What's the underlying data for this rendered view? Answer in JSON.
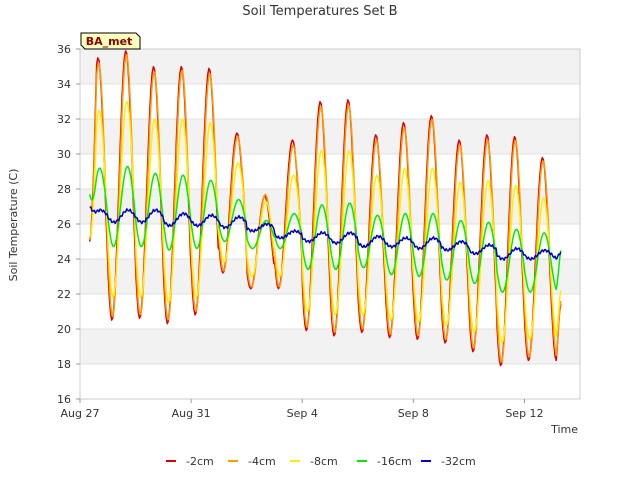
{
  "chart_data": {
    "type": "line",
    "title": "Soil Temperatures Set B",
    "xlabel": "Time",
    "ylabel": "Soil Temperature (C)",
    "badge": "BA_met",
    "x_start": "Aug 27",
    "x_end": "Sep 14",
    "xlim": [
      0,
      18
    ],
    "ylim": [
      16,
      36
    ],
    "x_ticks": [
      {
        "label": "Aug 27",
        "day": 0
      },
      {
        "label": "Aug 31",
        "day": 4
      },
      {
        "label": "Sep 4",
        "day": 8
      },
      {
        "label": "Sep 8",
        "day": 12
      },
      {
        "label": "Sep 12",
        "day": 16
      }
    ],
    "y_ticks": [
      16,
      18,
      20,
      22,
      24,
      26,
      28,
      30,
      32,
      34,
      36
    ],
    "grid": true,
    "legend_position": "bottom",
    "series": [
      {
        "name": "-2cm",
        "color": "#dd0000",
        "daily_max": [
          35.5,
          35.9,
          35.0,
          35.0,
          34.9,
          31.2,
          27.6,
          30.8,
          33.0,
          33.1,
          31.1,
          31.8,
          32.2,
          30.8,
          31.1,
          31.0,
          29.8
        ],
        "daily_min": [
          20.8,
          20.5,
          20.6,
          20.3,
          20.8,
          23.2,
          22.3,
          22.3,
          19.9,
          19.6,
          19.8,
          19.5,
          19.4,
          19.2,
          18.7,
          17.9,
          18.2
        ],
        "start": 25.0,
        "end": 21.4
      },
      {
        "name": "-4cm",
        "color": "#ff9900",
        "daily_max": [
          35.2,
          35.7,
          34.7,
          34.8,
          34.6,
          31.0,
          27.7,
          30.5,
          32.7,
          32.8,
          30.8,
          31.5,
          32.0,
          30.5,
          30.8,
          30.8,
          29.6
        ],
        "daily_min": [
          21.0,
          20.7,
          20.8,
          20.5,
          21.0,
          23.3,
          22.4,
          22.4,
          20.1,
          19.8,
          20.0,
          19.7,
          19.6,
          19.4,
          18.9,
          18.1,
          18.4
        ],
        "start": 25.1,
        "end": 21.6
      },
      {
        "name": "-8cm",
        "color": "#ffee00",
        "daily_max": [
          32.5,
          33.0,
          32.0,
          32.0,
          31.8,
          29.5,
          27.3,
          28.8,
          30.2,
          30.2,
          28.8,
          29.2,
          29.2,
          28.4,
          28.5,
          28.2,
          27.5
        ],
        "daily_min": [
          22.0,
          21.8,
          21.8,
          21.5,
          21.8,
          23.8,
          23.0,
          23.0,
          21.0,
          20.8,
          20.8,
          20.5,
          20.4,
          20.2,
          19.8,
          19.2,
          19.4
        ],
        "start": 25.3,
        "end": 22.2
      },
      {
        "name": "-16cm",
        "color": "#00ee00",
        "daily_max": [
          29.2,
          29.3,
          28.9,
          28.8,
          28.5,
          27.4,
          26.2,
          26.6,
          27.1,
          27.2,
          26.5,
          26.6,
          26.6,
          26.2,
          26.1,
          25.7,
          25.5
        ],
        "daily_min": [
          24.9,
          24.7,
          24.7,
          24.5,
          24.6,
          25.0,
          24.6,
          24.6,
          23.4,
          23.4,
          23.5,
          23.1,
          23.0,
          22.8,
          22.6,
          22.1,
          22.1
        ],
        "start": 27.7,
        "end": 24.5
      },
      {
        "name": "-32cm",
        "color": "#0000cc",
        "daily_max": [
          26.8,
          26.8,
          26.8,
          26.6,
          26.5,
          26.4,
          26.0,
          25.6,
          25.5,
          25.5,
          25.3,
          25.2,
          25.2,
          25.0,
          24.8,
          24.6,
          24.5
        ],
        "daily_min": [
          26.2,
          26.1,
          26.1,
          25.9,
          25.9,
          25.8,
          25.6,
          25.2,
          25.0,
          24.9,
          24.7,
          24.7,
          24.6,
          24.5,
          24.3,
          24.0,
          24.0
        ],
        "start": 27.0,
        "end": 24.4
      }
    ]
  }
}
